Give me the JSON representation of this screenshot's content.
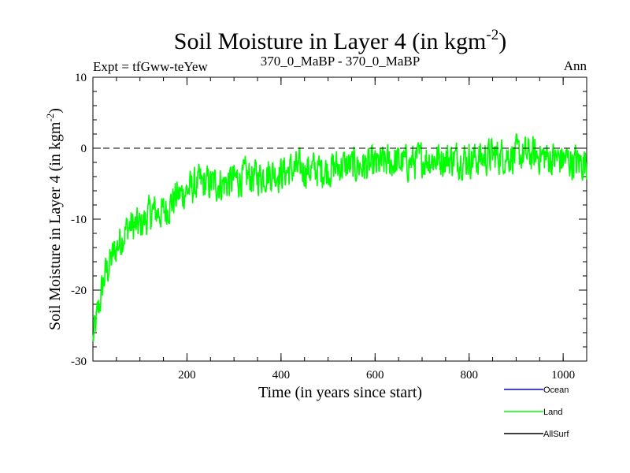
{
  "chart_data": {
    "type": "line",
    "title_main": "Soil Moisture in Layer 4 (in kgm",
    "title_sup": "-2",
    "title_close": ")",
    "subtitle_left": "Expt = tfGww-teYew",
    "subtitle_center": "370_0_MaBP - 370_0_MaBP",
    "subtitle_right": "Ann",
    "xlabel": "Time (in years since start)",
    "ylabel_main": "Soil Moisture in Layer 4 (in kgm",
    "ylabel_sup": "-2",
    "ylabel_close": ")",
    "xlim": [
      0,
      1050
    ],
    "ylim": [
      -30,
      10
    ],
    "xticks": [
      200,
      400,
      600,
      800,
      1000
    ],
    "xtick_labels": [
      "200",
      "400",
      "600",
      "800",
      "1000"
    ],
    "yticks": [
      -30,
      -20,
      -10,
      0,
      10
    ],
    "ytick_labels": [
      "-30",
      "-20",
      "-10",
      "0",
      "10"
    ],
    "reference_line": 0,
    "legend": [
      {
        "name": "Ocean",
        "color": "#0000ff"
      },
      {
        "name": "Land",
        "color": "#00ff00"
      },
      {
        "name": "AllSurf",
        "color": "#000000"
      }
    ],
    "series": [
      {
        "name": "Land",
        "color": "#00ff00",
        "x": [
          0,
          25,
          50,
          75,
          100,
          125,
          150,
          175,
          200,
          225,
          250,
          275,
          300,
          325,
          350,
          375,
          400,
          425,
          450,
          475,
          500,
          525,
          550,
          575,
          600,
          625,
          650,
          675,
          700,
          725,
          750,
          775,
          800,
          825,
          850,
          875,
          900,
          925,
          950,
          975,
          1000,
          1025,
          1050
        ],
        "values": [
          -27,
          -18,
          -14,
          -11,
          -11,
          -9,
          -9,
          -7,
          -6,
          -5,
          -5,
          -5,
          -4.5,
          -4,
          -4,
          -3.5,
          -3.5,
          -3,
          -3,
          -3,
          -3,
          -2.5,
          -2.5,
          -2.5,
          -2.5,
          -2,
          -2,
          -2,
          -1.5,
          -1.5,
          -1.5,
          -1.5,
          -1.5,
          -1.5,
          -1,
          -1,
          -1,
          -1,
          -1,
          -1.5,
          -1.5,
          -2,
          -2
        ],
        "noise_amplitude": 3.5
      }
    ]
  }
}
